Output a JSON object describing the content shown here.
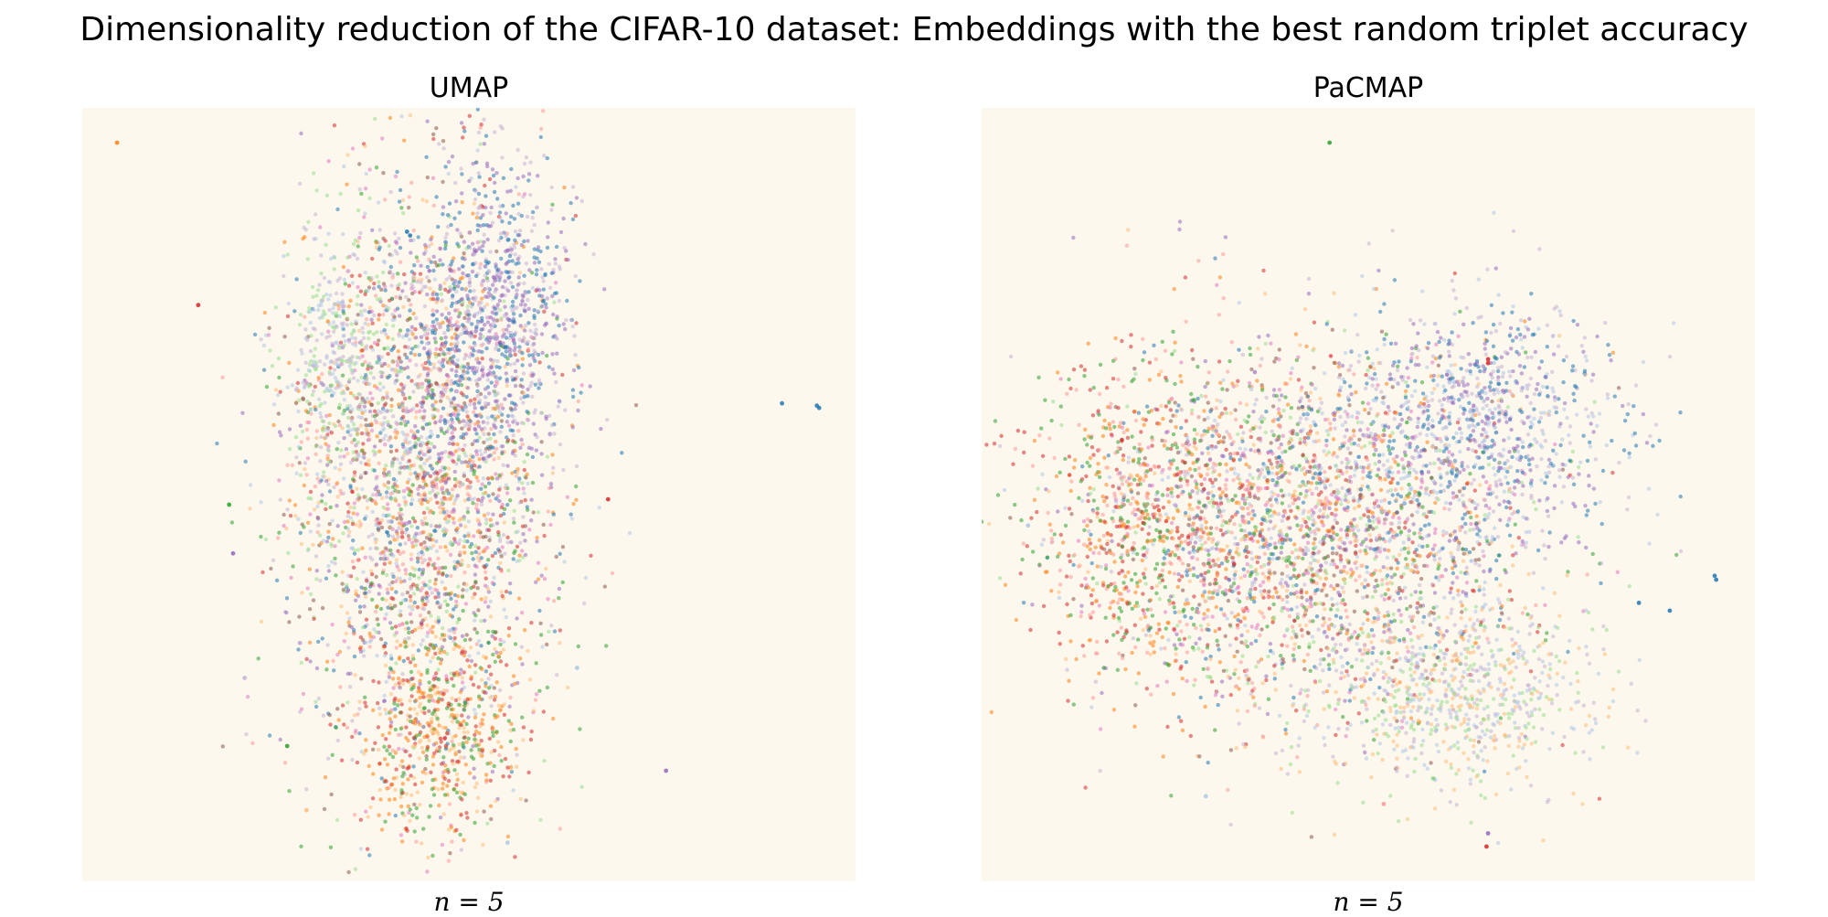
{
  "title": "Dimensionality reduction of the CIFAR-10 dataset: Embeddings with the best random triplet accuracy",
  "colors": {
    "background": "#fdf8ee",
    "palette": [
      "#1f77b4",
      "#aec7e8",
      "#ff7f0e",
      "#ffbb78",
      "#2ca02c",
      "#98df8a",
      "#d62728",
      "#ff9896",
      "#9467bd",
      "#c5b0d5",
      "#8c564b",
      "#e377c2"
    ]
  },
  "chart_data": [
    {
      "type": "scatter",
      "title": "UMAP",
      "xlabel": "n = 5",
      "grid": false,
      "axes_visible": false,
      "xlim": [
        0,
        1
      ],
      "ylim": [
        0,
        1
      ],
      "clusters": [
        {
          "cx": 0.44,
          "cy": 0.52,
          "sx": 0.085,
          "sy": 0.19,
          "n": 2600,
          "colors": "mixed"
        },
        {
          "cx": 0.53,
          "cy": 0.72,
          "sx": 0.055,
          "sy": 0.1,
          "n": 900,
          "colors": [
            "#9467bd",
            "#c5b0d5",
            "#1f77b4"
          ]
        },
        {
          "cx": 0.33,
          "cy": 0.68,
          "sx": 0.035,
          "sy": 0.09,
          "n": 350,
          "colors": [
            "#aec7e8",
            "#98df8a",
            "#c5b0d5"
          ]
        },
        {
          "cx": 0.46,
          "cy": 0.2,
          "sx": 0.05,
          "sy": 0.07,
          "n": 500,
          "colors": [
            "#d62728",
            "#ff7f0e",
            "#2ca02c",
            "#ffbb78"
          ]
        }
      ],
      "outliers": [
        {
          "x": 0.045,
          "y": 0.955,
          "color": "#ff7f0e"
        },
        {
          "x": 0.42,
          "y": 0.84,
          "color": "#1f77b4"
        },
        {
          "x": 0.424,
          "y": 0.835,
          "color": "#1f77b4"
        },
        {
          "x": 0.15,
          "y": 0.745,
          "color": "#d62728"
        },
        {
          "x": 0.905,
          "y": 0.618,
          "color": "#1f77b4"
        },
        {
          "x": 0.95,
          "y": 0.615,
          "color": "#1f77b4"
        },
        {
          "x": 0.953,
          "y": 0.612,
          "color": "#1f77b4"
        },
        {
          "x": 0.68,
          "y": 0.494,
          "color": "#d62728"
        },
        {
          "x": 0.19,
          "y": 0.487,
          "color": "#2ca02c"
        },
        {
          "x": 0.195,
          "y": 0.424,
          "color": "#9467bd"
        },
        {
          "x": 0.64,
          "y": 0.276,
          "color": "#aec7e8"
        },
        {
          "x": 0.21,
          "y": 0.263,
          "color": "#c5b0d5"
        },
        {
          "x": 0.265,
          "y": 0.175,
          "color": "#2ca02c"
        },
        {
          "x": 0.755,
          "y": 0.143,
          "color": "#9467bd"
        },
        {
          "x": 0.29,
          "y": 0.092,
          "color": "#ffbb78"
        },
        {
          "x": 0.55,
          "y": 0.05,
          "color": "#aec7e8"
        }
      ]
    },
    {
      "type": "scatter",
      "title": "PaCMAP",
      "xlabel": "n = 5",
      "grid": false,
      "axes_visible": false,
      "xlim": [
        0,
        1
      ],
      "ylim": [
        0,
        1
      ],
      "clusters": [
        {
          "cx": 0.42,
          "cy": 0.45,
          "sx": 0.14,
          "sy": 0.12,
          "n": 2800,
          "colors": "mixed"
        },
        {
          "cx": 0.64,
          "cy": 0.59,
          "sx": 0.09,
          "sy": 0.08,
          "n": 900,
          "colors": [
            "#9467bd",
            "#c5b0d5",
            "#1f77b4",
            "#aec7e8"
          ]
        },
        {
          "cx": 0.62,
          "cy": 0.24,
          "sx": 0.09,
          "sy": 0.06,
          "n": 700,
          "colors": [
            "#aec7e8",
            "#98df8a",
            "#c5b0d5",
            "#ffbb78"
          ]
        },
        {
          "cx": 0.2,
          "cy": 0.46,
          "sx": 0.07,
          "sy": 0.11,
          "n": 600,
          "colors": [
            "#d62728",
            "#ff9896",
            "#ff7f0e",
            "#2ca02c"
          ]
        }
      ],
      "outliers": [
        {
          "x": 0.45,
          "y": 0.955,
          "color": "#2ca02c"
        },
        {
          "x": 0.655,
          "y": 0.675,
          "color": "#d62728"
        },
        {
          "x": 0.655,
          "y": 0.67,
          "color": "#d62728"
        },
        {
          "x": 0.06,
          "y": 0.46,
          "color": "#aec7e8"
        },
        {
          "x": 0.85,
          "y": 0.36,
          "color": "#1f77b4"
        },
        {
          "x": 0.89,
          "y": 0.35,
          "color": "#1f77b4"
        },
        {
          "x": 0.948,
          "y": 0.395,
          "color": "#1f77b4"
        },
        {
          "x": 0.95,
          "y": 0.39,
          "color": "#1f77b4"
        },
        {
          "x": 0.29,
          "y": 0.11,
          "color": "#aec7e8"
        },
        {
          "x": 0.52,
          "y": 0.1,
          "color": "#ff9896"
        },
        {
          "x": 0.655,
          "y": 0.062,
          "color": "#9467bd"
        },
        {
          "x": 0.653,
          "y": 0.045,
          "color": "#d62728"
        }
      ]
    }
  ]
}
